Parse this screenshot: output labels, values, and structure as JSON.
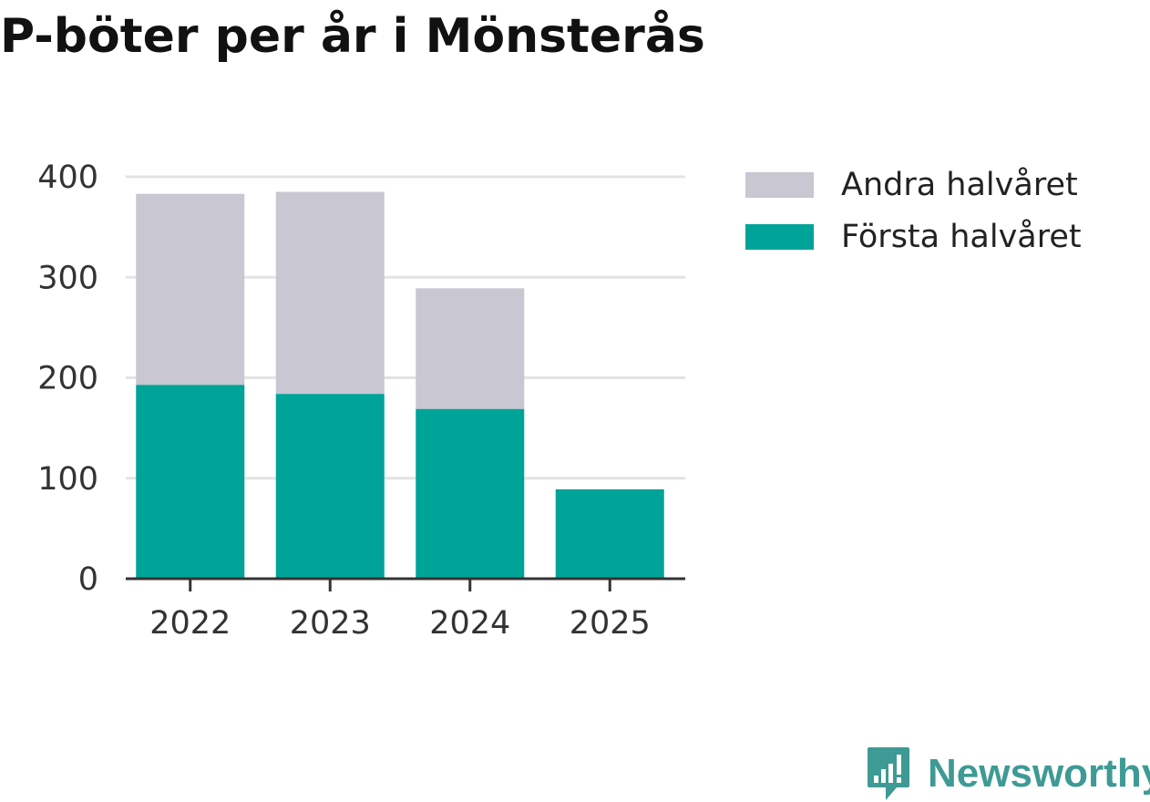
{
  "chart_data": {
    "type": "bar",
    "stacked": true,
    "title": "P-böter per år i Mönsterås",
    "categories": [
      "2022",
      "2023",
      "2024",
      "2025"
    ],
    "series": [
      {
        "name": "Första halvåret",
        "color": "#00a398",
        "values": [
          193,
          184,
          169,
          89
        ]
      },
      {
        "name": "Andra halvåret",
        "color": "#c8c7d2",
        "values": [
          190,
          201,
          120,
          0
        ]
      }
    ],
    "yticks": [
      "0",
      "100",
      "200",
      "300",
      "400"
    ],
    "ylim": [
      0,
      400
    ],
    "xlabel": "",
    "ylabel": "",
    "grid": true,
    "legend_position": "right"
  },
  "legend": [
    {
      "label": "Andra halvåret",
      "color": "#c8c7d2"
    },
    {
      "label": "Första halvåret",
      "color": "#00a398"
    }
  ],
  "brand": {
    "name": "Newsworthy",
    "color": "#3e9a94"
  }
}
